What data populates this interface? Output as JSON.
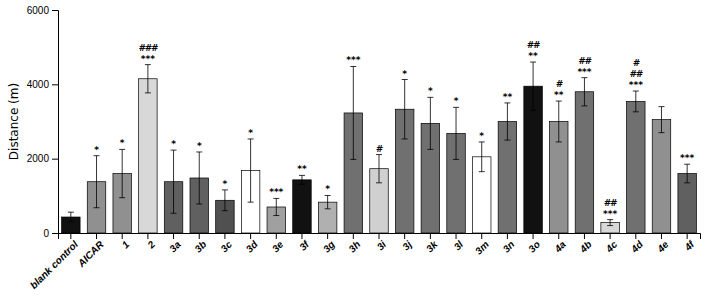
{
  "chart_data": {
    "type": "bar",
    "categories": [
      "blank control",
      "AICAR",
      "1",
      "2",
      "3a",
      "3b",
      "3c",
      "3d",
      "3e",
      "3f",
      "3g",
      "3h",
      "3i",
      "3j",
      "3k",
      "3l",
      "3m",
      "3n",
      "3o",
      "4a",
      "4b",
      "4c",
      "4d",
      "4e",
      "4f"
    ],
    "values": [
      430,
      1380,
      1600,
      4150,
      1380,
      1480,
      880,
      1680,
      700,
      1430,
      830,
      3230,
      1730,
      3330,
      2950,
      2680,
      2050,
      3000,
      3950,
      3000,
      3800,
      280,
      3540,
      3050,
      1600
    ],
    "errors": [
      130,
      700,
      650,
      380,
      850,
      700,
      280,
      850,
      230,
      120,
      180,
      1250,
      380,
      800,
      700,
      700,
      400,
      500,
      650,
      550,
      380,
      80,
      280,
      350,
      250
    ],
    "colors": [
      "#111111",
      "#909090",
      "#909090",
      "#d8d8d8",
      "#606060",
      "#606060",
      "#505050",
      "#ffffff",
      "#a0a0a0",
      "#111111",
      "#b0b0b0",
      "#707070",
      "#d0d0d0",
      "#707070",
      "#707070",
      "#707070",
      "#ffffff",
      "#707070",
      "#111111",
      "#909090",
      "#707070",
      "#d8d8d8",
      "#707070",
      "#909090",
      "#606060"
    ],
    "annotations": [
      {
        "category": "AICAR",
        "text": [
          "*"
        ]
      },
      {
        "category": "1",
        "text": [
          "*"
        ]
      },
      {
        "category": "2",
        "text": [
          "***",
          "###"
        ]
      },
      {
        "category": "3a",
        "text": [
          "*"
        ]
      },
      {
        "category": "3b",
        "text": [
          "*"
        ]
      },
      {
        "category": "3c",
        "text": [
          "*"
        ]
      },
      {
        "category": "3d",
        "text": [
          "*"
        ]
      },
      {
        "category": "3e",
        "text": [
          "***"
        ]
      },
      {
        "category": "3f",
        "text": [
          "**"
        ]
      },
      {
        "category": "3g",
        "text": [
          "*"
        ]
      },
      {
        "category": "3h",
        "text": [
          "***"
        ]
      },
      {
        "category": "3i",
        "text": [
          "#"
        ]
      },
      {
        "category": "3j",
        "text": [
          "*"
        ]
      },
      {
        "category": "3k",
        "text": [
          "*"
        ]
      },
      {
        "category": "3l",
        "text": [
          "*"
        ]
      },
      {
        "category": "3m",
        "text": [
          "*"
        ]
      },
      {
        "category": "3n",
        "text": [
          "**"
        ]
      },
      {
        "category": "3o",
        "text": [
          "**",
          "##"
        ]
      },
      {
        "category": "4a",
        "text": [
          "**",
          "#"
        ]
      },
      {
        "category": "4b",
        "text": [
          "***",
          "##"
        ]
      },
      {
        "category": "4c",
        "text": [
          "***",
          "##"
        ]
      },
      {
        "category": "4d",
        "text": [
          "***",
          "##",
          "#"
        ]
      },
      {
        "category": "4f",
        "text": [
          "***"
        ]
      }
    ],
    "ylabel": "Distance (m)",
    "ylim": [
      0,
      6000
    ],
    "yticks": [
      0,
      2000,
      4000,
      6000
    ],
    "grid": false
  }
}
